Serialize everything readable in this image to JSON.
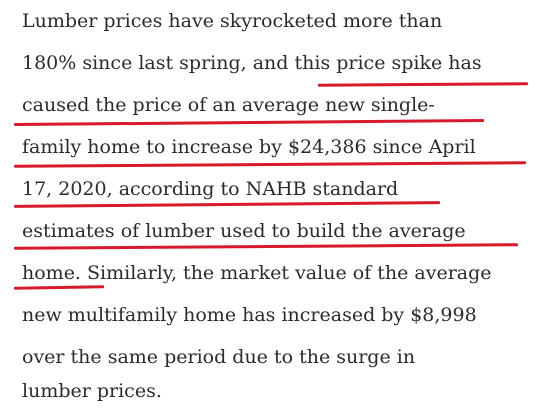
{
  "article": {
    "lines": [
      "Lumber prices have skyrocketed more than",
      "180% since last spring, and this price spike has",
      "caused the price of an average new single-",
      "family home to increase by $24,386 since April",
      "17, 2020, according to NAHB standard",
      "estimates of lumber used to build the average",
      "home. Similarly, the market value of the average",
      "new multifamily home has increased by $8,998",
      "over the same period due to the surge in",
      "lumber prices."
    ],
    "highlight_color": "#d7192b",
    "text_color": "#2b2b2b"
  }
}
